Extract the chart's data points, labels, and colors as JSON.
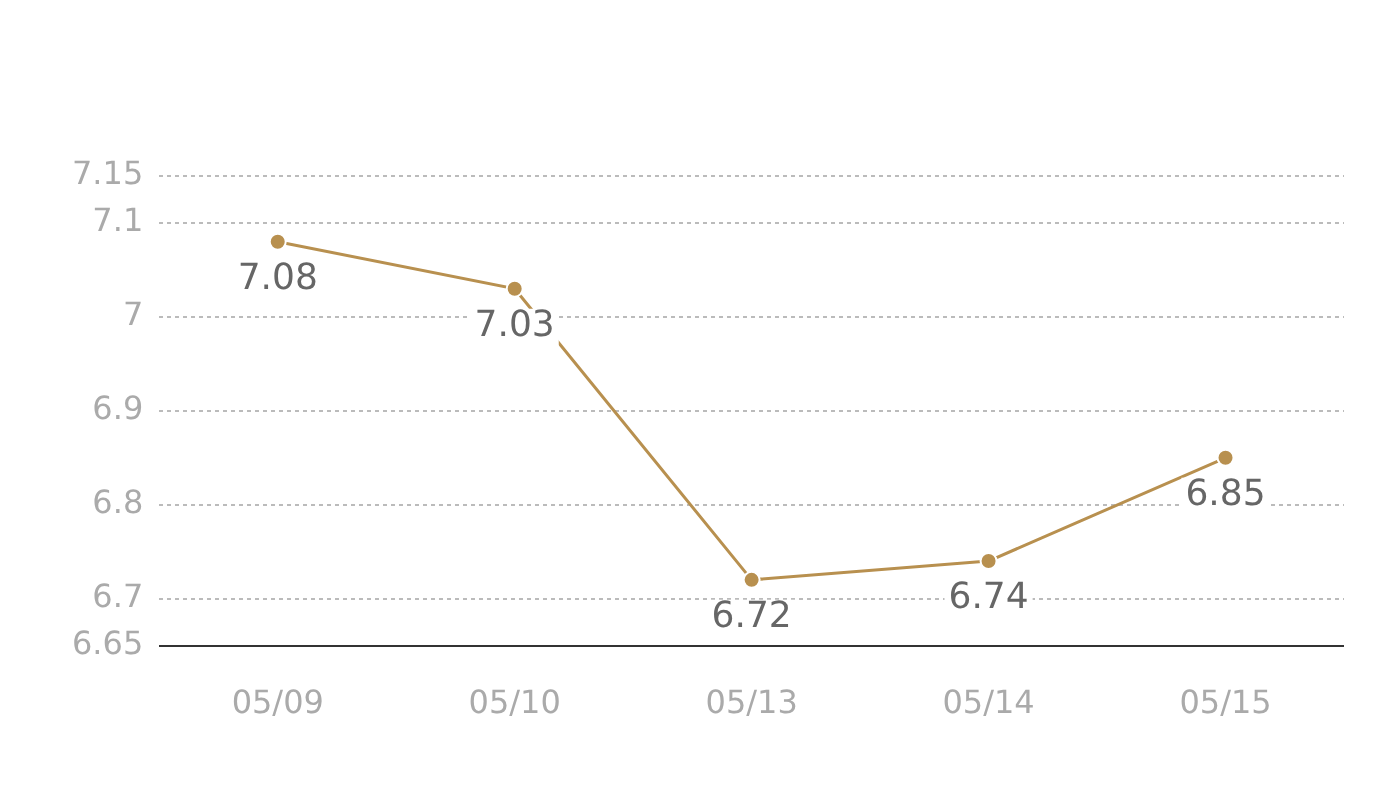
{
  "chart_data": {
    "type": "line",
    "categories": [
      "05/09",
      "05/10",
      "05/13",
      "05/14",
      "05/15"
    ],
    "series": [
      {
        "color": "#b8904f",
        "values": [
          7.08,
          7.03,
          6.72,
          6.74,
          6.85
        ]
      }
    ],
    "ylim": [
      6.65,
      7.15
    ],
    "yticks": [
      6.65,
      6.7,
      6.8,
      6.9,
      7,
      7.1,
      7.15
    ],
    "grid": "y",
    "marker": "circle",
    "line_style": "solid",
    "data_labels": true,
    "legend": false
  }
}
